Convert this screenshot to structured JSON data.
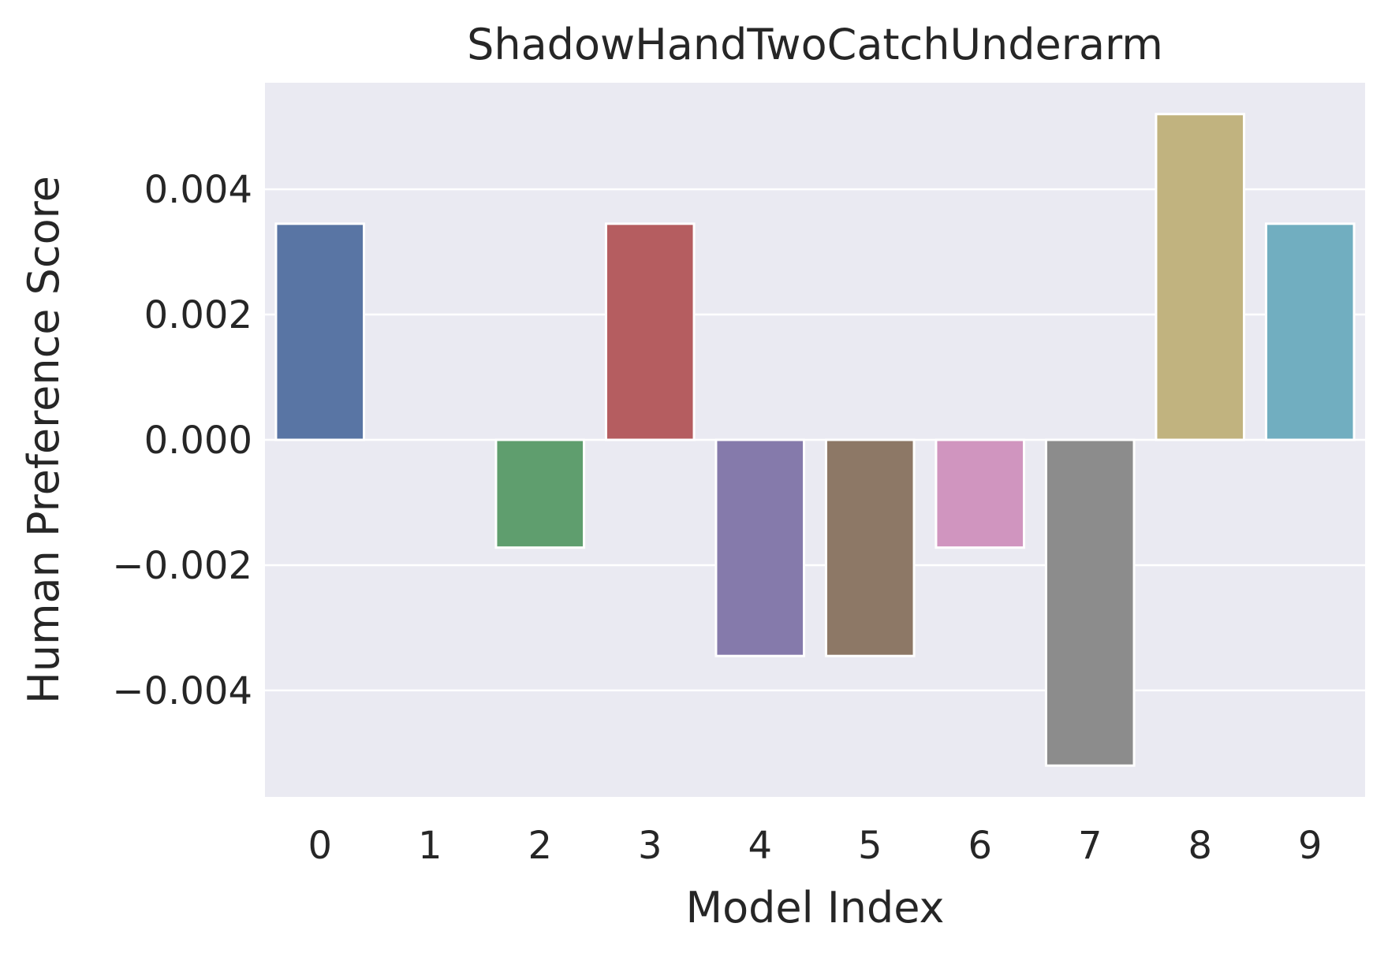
{
  "chart_data": {
    "type": "bar",
    "title": "ShadowHandTwoCatchUnderarm",
    "xlabel": "Model Index",
    "ylabel": "Human Preference Score",
    "categories": [
      "0",
      "1",
      "2",
      "3",
      "4",
      "5",
      "6",
      "7",
      "8",
      "9"
    ],
    "values": [
      0.00345,
      0.0,
      -0.00172,
      0.00345,
      -0.00345,
      -0.00345,
      -0.00172,
      -0.0052,
      0.0052,
      0.00345
    ],
    "colors": [
      "#5975a4",
      "#cc8963",
      "#5f9e6e",
      "#b55d60",
      "#857aab",
      "#8d7866",
      "#d095bf",
      "#8c8c8c",
      "#c1b37f",
      "#71aec0"
    ],
    "ylim": [
      -0.0057,
      0.0057
    ],
    "yticks": [
      -0.004,
      -0.002,
      0.0,
      0.002,
      0.004
    ],
    "ytick_labels": [
      "−0.004",
      "−0.002",
      "0.000",
      "0.002",
      "0.004"
    ],
    "grid": true,
    "plot_background": "#eaeaf2",
    "grid_color": "#ffffff"
  }
}
